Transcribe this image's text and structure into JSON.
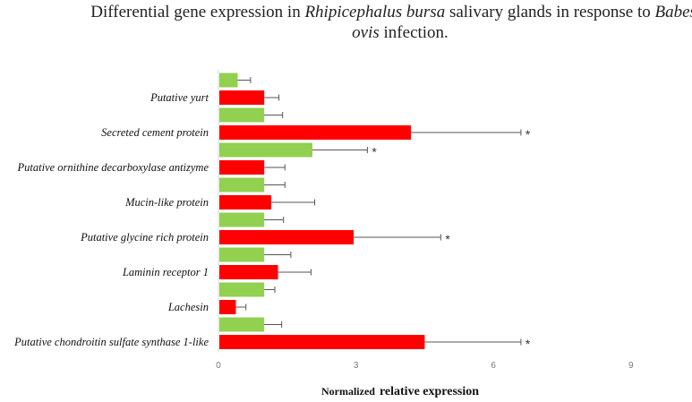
{
  "chart_data": {
    "type": "bar",
    "orientation": "horizontal",
    "title": {
      "part1": "Differential gene expression in ",
      "part2_italic": "Rhipicephalus bursa",
      "part3": " salivary glands in response to ",
      "part4_italic": "Babesia",
      "part5_italic": "ovis",
      "part6": " infection."
    },
    "xlabel": {
      "prefix": "Normalized",
      "main": "relative expression"
    },
    "xlim": [
      0,
      9
    ],
    "xticks": [
      "0",
      "3",
      "6",
      "9"
    ],
    "grid": false,
    "colors": {
      "green": "#92d050",
      "red": "#ff0000",
      "error_bar": "#555555",
      "axis": "#d9d9d9"
    },
    "labels": [
      "Putative yurt",
      "Secreted cement protein",
      "Putative ornithine decarboxylase antizyme",
      "Mucin-like protein",
      "Putative glycine rich protein",
      "Laminin receptor 1",
      "Lachesin",
      "Putative chondroitin sulfate synthase 1-like"
    ],
    "bars": [
      {
        "color": "green",
        "value": 0.42,
        "error": 0.28,
        "significant": false,
        "label_index": null
      },
      {
        "color": "red",
        "value": 1.0,
        "error": 0.32,
        "significant": false,
        "label_index": 0
      },
      {
        "color": "green",
        "value": 1.0,
        "error": 0.4,
        "significant": false,
        "label_index": null
      },
      {
        "color": "red",
        "value": 4.2,
        "error": 2.4,
        "significant": true,
        "label_index": 1
      },
      {
        "color": "green",
        "value": 2.05,
        "error": 1.2,
        "significant": true,
        "label_index": null
      },
      {
        "color": "red",
        "value": 1.0,
        "error": 0.45,
        "significant": false,
        "label_index": 2
      },
      {
        "color": "green",
        "value": 1.0,
        "error": 0.45,
        "significant": false,
        "label_index": null
      },
      {
        "color": "red",
        "value": 1.15,
        "error": 0.95,
        "significant": false,
        "label_index": 3
      },
      {
        "color": "green",
        "value": 1.0,
        "error": 0.42,
        "significant": false,
        "label_index": null
      },
      {
        "color": "red",
        "value": 2.95,
        "error": 1.9,
        "significant": true,
        "label_index": 4
      },
      {
        "color": "green",
        "value": 1.0,
        "error": 0.58,
        "significant": false,
        "label_index": null
      },
      {
        "color": "red",
        "value": 1.3,
        "error": 0.72,
        "significant": false,
        "label_index": 5
      },
      {
        "color": "green",
        "value": 1.0,
        "error": 0.23,
        "significant": false,
        "label_index": null
      },
      {
        "color": "red",
        "value": 0.38,
        "error": 0.22,
        "significant": false,
        "label_index": 6
      },
      {
        "color": "green",
        "value": 1.0,
        "error": 0.38,
        "significant": false,
        "label_index": null
      },
      {
        "color": "red",
        "value": 4.5,
        "error": 2.1,
        "significant": true,
        "label_index": 7
      }
    ],
    "significance_marker": "*"
  }
}
